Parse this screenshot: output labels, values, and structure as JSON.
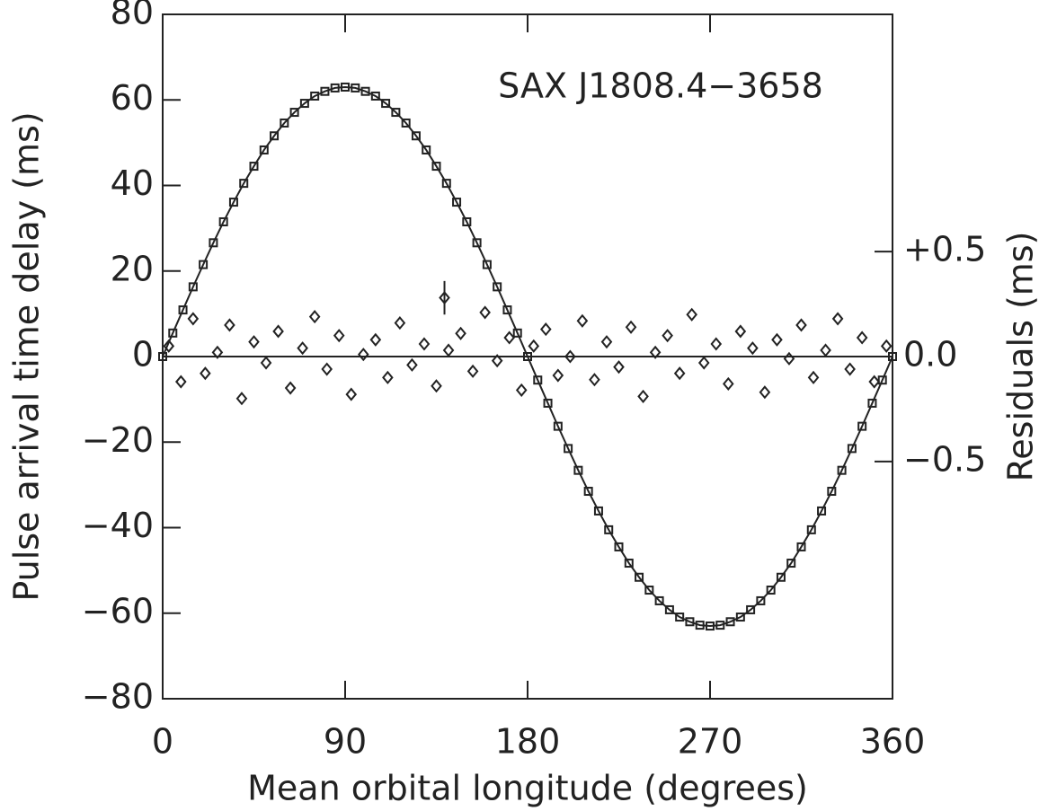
{
  "chart_data": {
    "type": "scatter",
    "annotation": "SAX J1808.4−3658",
    "x_label": "Mean orbital longitude (degrees)",
    "y_label": "Pulse arrival time delay (ms)",
    "y2_label": "Residuals (ms)",
    "xlim": [
      0,
      360
    ],
    "xticks": [
      0,
      90,
      180,
      270,
      360
    ],
    "ylim": [
      -80,
      80
    ],
    "yticks": [
      {
        "value": -80,
        "label": "−80"
      },
      {
        "value": -60,
        "label": "−60"
      },
      {
        "value": -40,
        "label": "−40"
      },
      {
        "value": -20,
        "label": "−20"
      },
      0,
      20,
      40,
      60,
      80
    ],
    "y2lim": [
      -1.63,
      1.63
    ],
    "y2ticks": [
      {
        "value": -0.5,
        "label": "−0.5"
      },
      {
        "value": 0,
        "label": "0.0"
      },
      {
        "value": 0.5,
        "label": "+0.5"
      }
    ],
    "reference_line": 0,
    "color": "#222222",
    "series": [
      {
        "marker": "square",
        "line": true,
        "x": [
          0,
          5,
          10,
          15,
          20,
          25,
          30,
          35,
          40,
          45,
          50,
          55,
          60,
          65,
          70,
          75,
          80,
          85,
          90,
          95,
          100,
          105,
          110,
          115,
          120,
          125,
          130,
          135,
          140,
          145,
          150,
          155,
          160,
          165,
          170,
          175,
          180,
          185,
          190,
          195,
          200,
          205,
          210,
          215,
          220,
          225,
          230,
          235,
          240,
          245,
          250,
          255,
          260,
          265,
          270,
          275,
          280,
          285,
          290,
          295,
          300,
          305,
          310,
          315,
          320,
          325,
          330,
          335,
          340,
          345,
          350,
          355,
          360
        ],
        "values": [
          0,
          5.5,
          10.9,
          16.3,
          21.5,
          26.6,
          31.5,
          36.1,
          40.5,
          44.5,
          48.3,
          51.6,
          54.6,
          57.1,
          59.2,
          60.9,
          62.0,
          62.8,
          63.0,
          62.8,
          62.0,
          60.9,
          59.2,
          57.1,
          54.6,
          51.6,
          48.3,
          44.5,
          40.5,
          36.1,
          31.5,
          26.6,
          21.5,
          16.3,
          10.9,
          5.5,
          0,
          -5.5,
          -10.9,
          -16.3,
          -21.5,
          -26.6,
          -31.5,
          -36.1,
          -40.5,
          -44.5,
          -48.3,
          -51.6,
          -54.6,
          -57.1,
          -59.2,
          -60.9,
          -62.0,
          -62.8,
          -63.0,
          -62.8,
          -62.0,
          -60.9,
          -59.2,
          -57.1,
          -54.6,
          -51.6,
          -48.3,
          -44.5,
          -40.5,
          -36.1,
          -31.5,
          -26.6,
          -21.5,
          -16.3,
          -10.9,
          -5.5,
          0
        ]
      },
      {
        "marker": "diamond",
        "axis": "y2",
        "x": [
          3,
          9,
          15,
          21,
          27,
          33,
          39,
          45,
          51,
          57,
          63,
          69,
          75,
          81,
          87,
          93,
          99,
          105,
          111,
          117,
          123,
          129,
          135,
          141,
          147,
          153,
          159,
          165,
          171,
          177,
          183,
          189,
          195,
          201,
          207,
          213,
          219,
          225,
          231,
          237,
          243,
          249,
          255,
          261,
          267,
          273,
          279,
          285,
          291,
          297,
          303,
          309,
          315,
          321,
          327,
          333,
          339,
          345,
          351,
          357
        ],
        "values": [
          0.05,
          -0.12,
          0.18,
          -0.08,
          0.02,
          0.15,
          -0.2,
          0.07,
          -0.03,
          0.12,
          -0.15,
          0.04,
          0.19,
          -0.06,
          0.1,
          -0.18,
          0.01,
          0.08,
          -0.1,
          0.16,
          -0.04,
          0.06,
          -0.14,
          0.03,
          0.11,
          -0.07,
          0.21,
          -0.02,
          0.09,
          -0.16,
          0.05,
          0.13,
          -0.09,
          0.0,
          0.17,
          -0.11,
          0.07,
          -0.05,
          0.14,
          -0.19,
          0.02,
          0.1,
          -0.08,
          0.2,
          -0.03,
          0.06,
          -0.13,
          0.12,
          0.04,
          -0.17,
          0.08,
          -0.01,
          0.15,
          -0.1,
          0.03,
          0.18,
          -0.06,
          0.09,
          -0.12,
          0.05
        ]
      },
      {
        "marker": "diamond",
        "axis": "y2",
        "x": [
          139
        ],
        "values": [
          0.28
        ],
        "errors": [
          0.08
        ]
      }
    ]
  }
}
